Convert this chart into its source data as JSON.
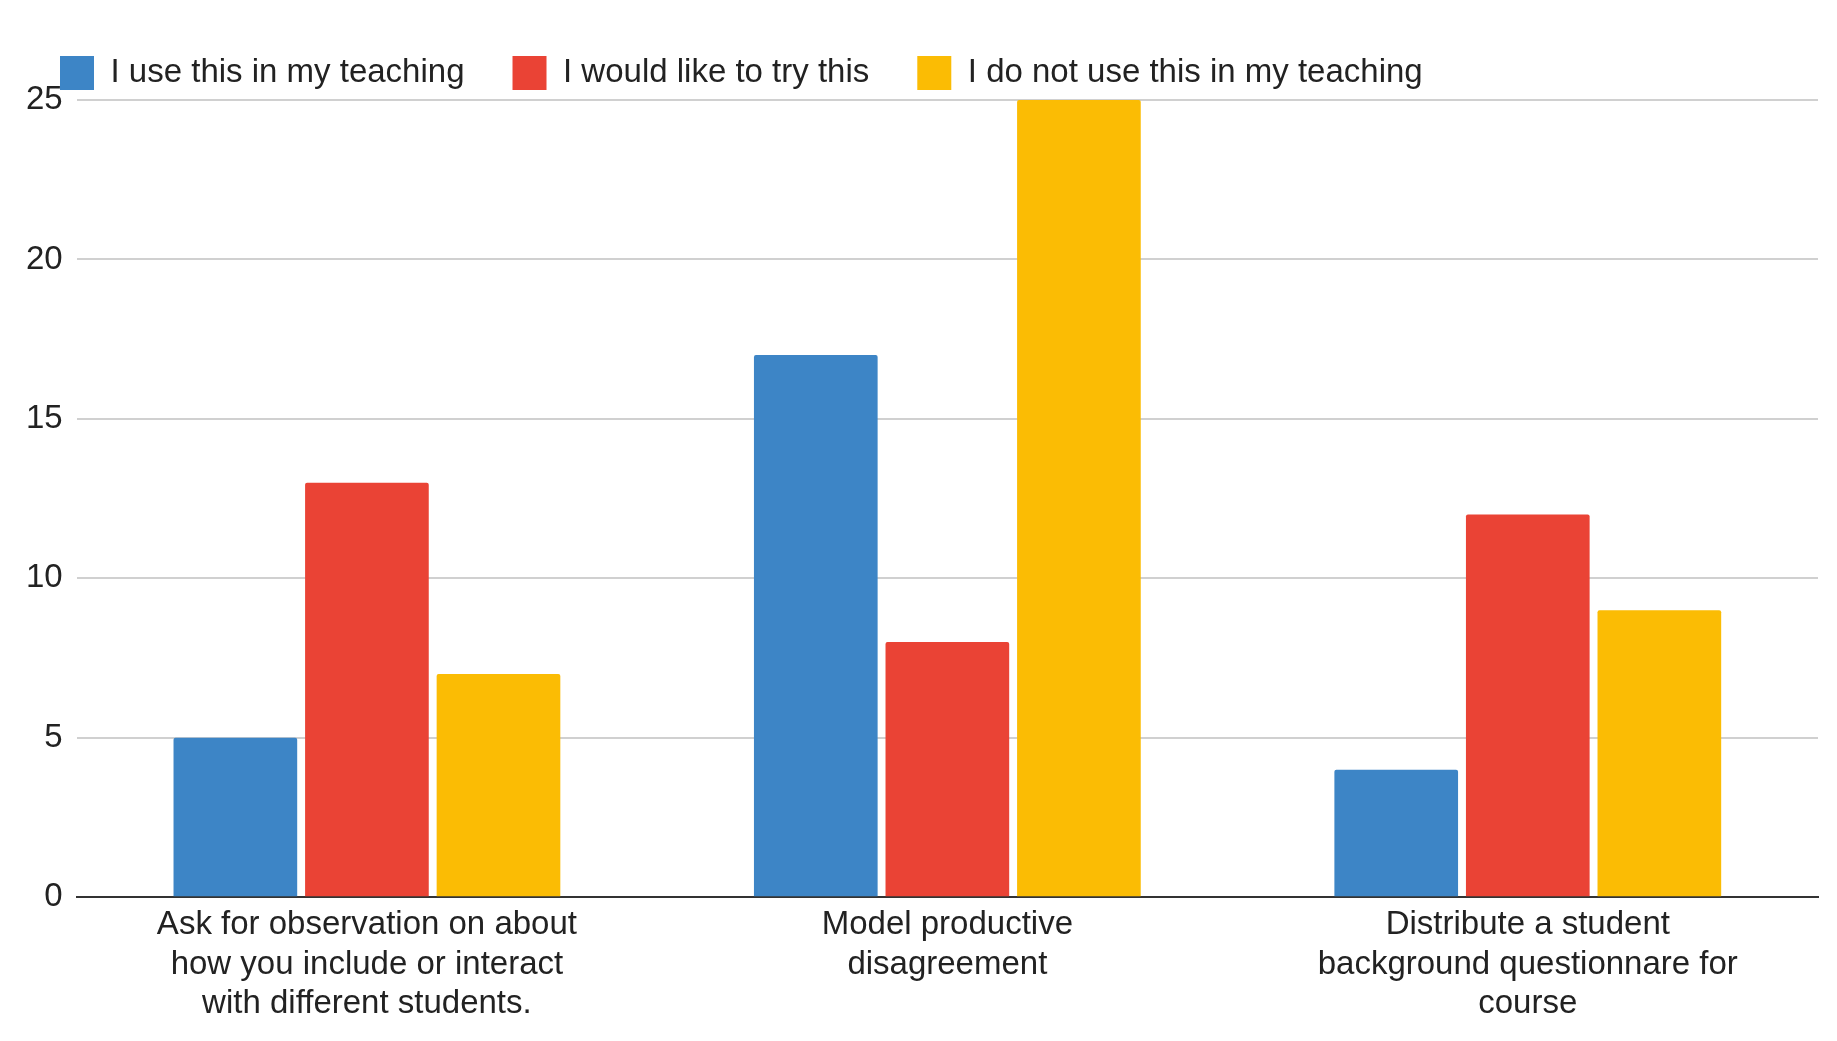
{
  "chart_data": {
    "type": "bar",
    "categories": [
      "Ask for observation on about how you include or interact with different students.",
      "Model productive disagreement",
      "Distribute a student background questionnare for course"
    ],
    "series": [
      {
        "name": "I use this in my teaching",
        "color": "#3d85c6",
        "values": [
          5,
          17,
          4
        ]
      },
      {
        "name": "I would like to try this",
        "color": "#ea4335",
        "values": [
          13,
          8,
          12
        ]
      },
      {
        "name": "I do not use this in my teaching",
        "color": "#fbbc04",
        "values": [
          7,
          25,
          9
        ]
      }
    ],
    "ylim": [
      0,
      25
    ],
    "yticks": [
      0,
      5,
      10,
      15,
      20,
      25
    ],
    "grid": "y",
    "legend": "top"
  }
}
